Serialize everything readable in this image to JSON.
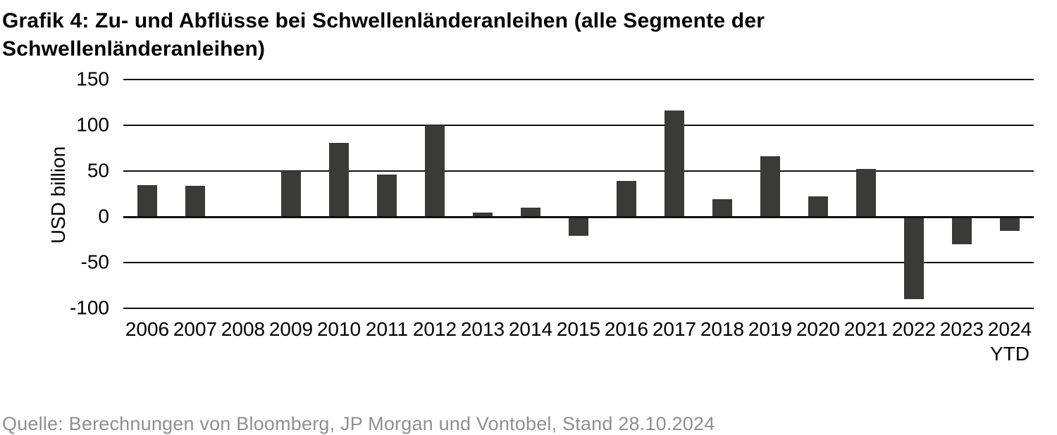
{
  "title_lines": [
    "Grafik 4: Zu- und Abflüsse bei Schwellenländeranleihen (alle Segmente der",
    "Schwellenländeranleihen)"
  ],
  "source": "Quelle: Berechnungen von Bloomberg, JP Morgan und Vontobel, Stand 28.10.2024",
  "chart_data": {
    "type": "bar",
    "title": "Grafik 4: Zu- und Abflüsse bei Schwellenländeranleihen (alle Segmente der Schwellenländeranleihen)",
    "xlabel": "",
    "ylabel": "USD billion",
    "categories": [
      "2006",
      "2007",
      "2008",
      "2009",
      "2010",
      "2011",
      "2012",
      "2013",
      "2014",
      "2015",
      "2016",
      "2017",
      "2018",
      "2019",
      "2020",
      "2021",
      "2022",
      "2023",
      "2024 YTD"
    ],
    "values": [
      35,
      34,
      -1,
      50,
      81,
      46,
      100,
      5,
      10,
      -21,
      39,
      116,
      19,
      66,
      22,
      52,
      -90,
      -30,
      -15
    ],
    "ylim": [
      -100,
      150
    ],
    "yticks": [
      150,
      100,
      50,
      0,
      -50,
      -100
    ],
    "grid": "horizontal",
    "legend": "none",
    "bar_color": "#3a3a38",
    "grid_color": "#111111",
    "source_color": "#8f8f8f"
  }
}
